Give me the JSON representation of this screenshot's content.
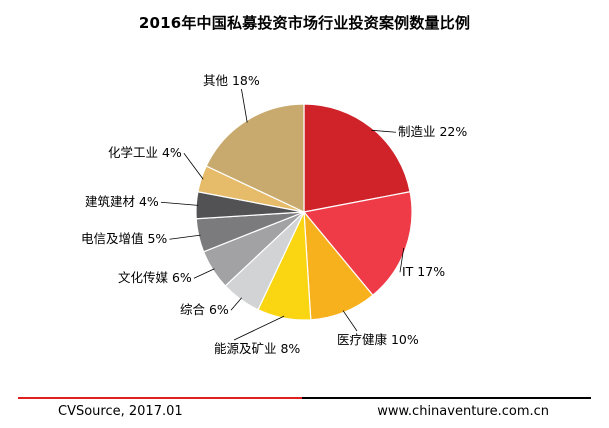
{
  "chart_data": {
    "type": "pie",
    "title": "2016年中国私募投资市场行业投资案例数量比例",
    "unit": "%",
    "slices": [
      {
        "label": "制造业",
        "value": 22,
        "color": "#cf2229"
      },
      {
        "label": "IT",
        "value": 17,
        "color": "#ef3a47"
      },
      {
        "label": "医疗健康",
        "value": 10,
        "color": "#f7b11c"
      },
      {
        "label": "能源及矿业",
        "value": 8,
        "color": "#f9d512"
      },
      {
        "label": "综合",
        "value": 6,
        "color": "#d2d3d5"
      },
      {
        "label": "文化传媒",
        "value": 6,
        "color": "#a2a2a4"
      },
      {
        "label": "电信及增值",
        "value": 5,
        "color": "#7b7b7d"
      },
      {
        "label": "建筑建材",
        "value": 4,
        "color": "#525254"
      },
      {
        "label": "化学工业",
        "value": 4,
        "color": "#e6bb69"
      },
      {
        "label": "其他",
        "value": 18,
        "color": "#c8aa6e"
      }
    ],
    "start_angle": "12 o'clock",
    "direction": "clockwise",
    "legend": "none"
  },
  "footer": {
    "source": "CVSource, 2017.01",
    "website": "www.chinaventure.com.cn",
    "rule_colors": [
      "#e02020",
      "#000000"
    ]
  }
}
